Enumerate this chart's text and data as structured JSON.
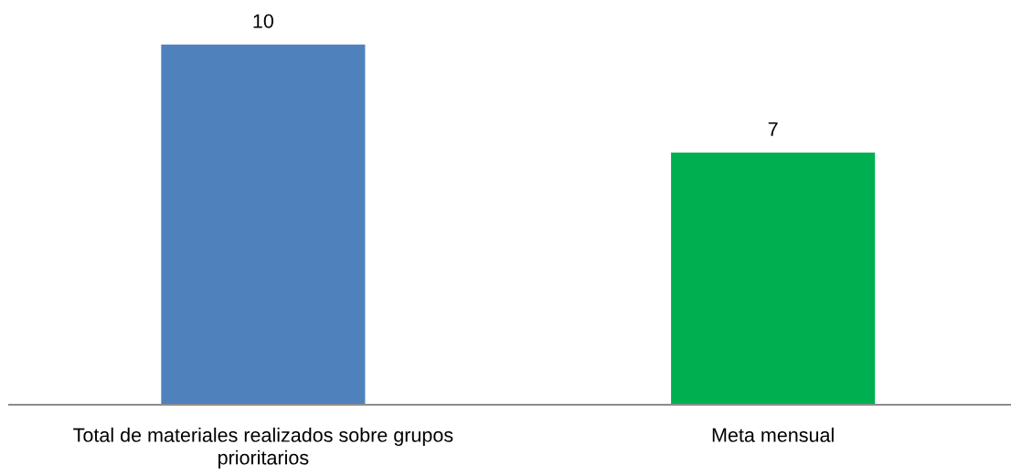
{
  "chart_data": {
    "type": "bar",
    "categories": [
      "Total de materiales realizados sobre grupos prioritarios",
      "Meta mensual"
    ],
    "values": [
      10,
      7
    ],
    "colors": [
      "#4f81bd",
      "#00b050"
    ],
    "tick_labels": "x",
    "grid": false,
    "legend": false,
    "data_labels": true
  }
}
